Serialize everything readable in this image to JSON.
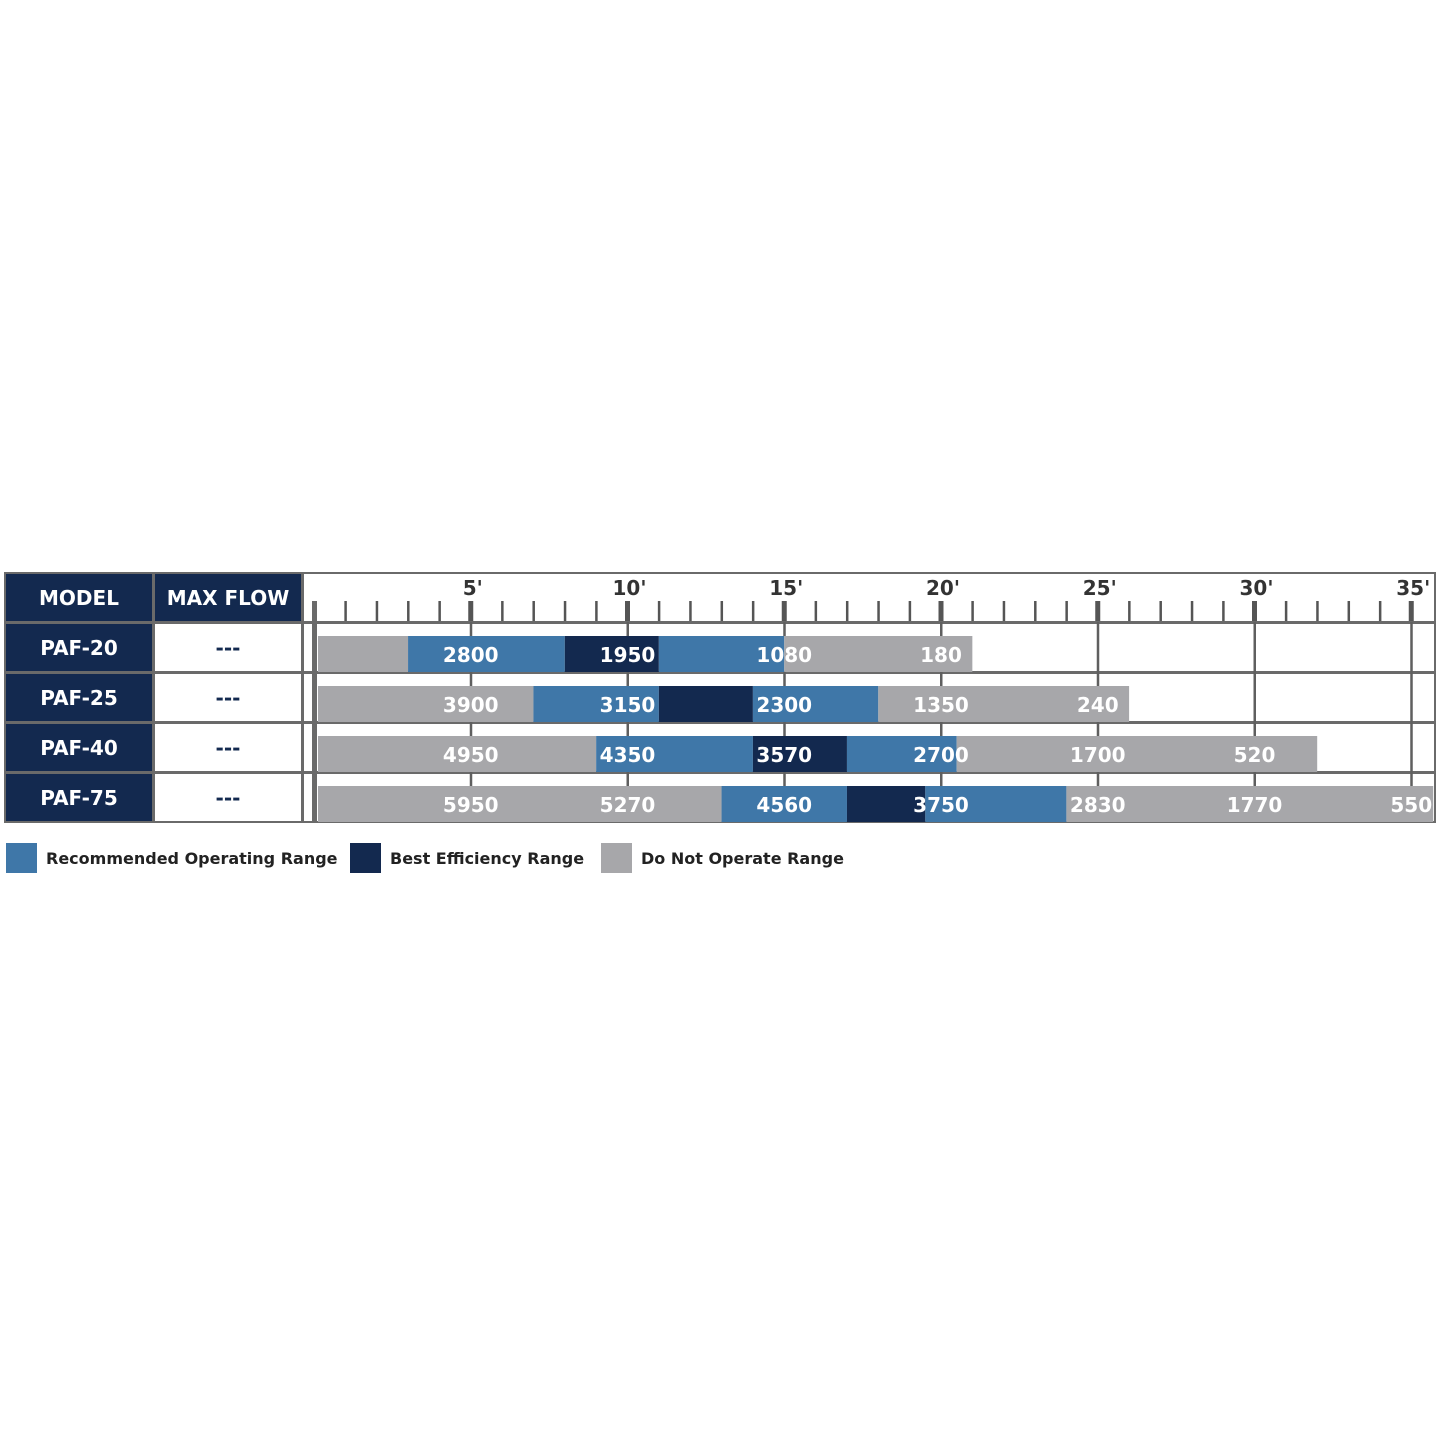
{
  "table": {
    "headers": {
      "model": "MODEL",
      "max_flow": "MAX FLOW"
    },
    "rows": [
      {
        "model": "PAF-20",
        "max_flow": "---"
      },
      {
        "model": "PAF-25",
        "max_flow": "---"
      },
      {
        "model": "PAF-40",
        "max_flow": "---"
      },
      {
        "model": "PAF-75",
        "max_flow": "---"
      }
    ]
  },
  "colors": {
    "recommended": "#3f77a8",
    "best": "#13294f",
    "do_not": "#a7a7aa",
    "grid": "#5f5f5f"
  },
  "chart_data": {
    "type": "bar",
    "orientation": "horizontal-stacked-ranges",
    "xlim": [
      0,
      35.7
    ],
    "x_ticks": [
      5,
      10,
      15,
      20,
      25,
      30,
      35
    ],
    "x_tick_labels": [
      "5'",
      "10'",
      "15'",
      "20'",
      "25'",
      "30'",
      "35'"
    ],
    "minor_tick_step": 1,
    "grid": true,
    "legend": {
      "placement": "bottom-left",
      "items": [
        {
          "key": "recommended",
          "label": "Recommended Operating Range"
        },
        {
          "key": "best",
          "label": "Best Efficiency Range"
        },
        {
          "key": "do_not",
          "label": "Do Not Operate Range"
        }
      ]
    },
    "series": [
      {
        "model": "PAF-20",
        "segments": [
          {
            "from": 0,
            "to": 3,
            "range": "do_not"
          },
          {
            "from": 3,
            "to": 8,
            "range": "recommended"
          },
          {
            "from": 8,
            "to": 11,
            "range": "best"
          },
          {
            "from": 11,
            "to": 15,
            "range": "recommended"
          },
          {
            "from": 15,
            "to": 21,
            "range": "do_not"
          }
        ],
        "labels": [
          {
            "x": 5,
            "value": "2800"
          },
          {
            "x": 10,
            "value": "1950"
          },
          {
            "x": 15,
            "value": "1080"
          },
          {
            "x": 20,
            "value": "180"
          }
        ]
      },
      {
        "model": "PAF-25",
        "segments": [
          {
            "from": 0,
            "to": 7,
            "range": "do_not"
          },
          {
            "from": 7,
            "to": 11,
            "range": "recommended"
          },
          {
            "from": 11,
            "to": 14,
            "range": "best"
          },
          {
            "from": 14,
            "to": 18,
            "range": "recommended"
          },
          {
            "from": 18,
            "to": 26,
            "range": "do_not"
          }
        ],
        "labels": [
          {
            "x": 5,
            "value": "3900"
          },
          {
            "x": 10,
            "value": "3150"
          },
          {
            "x": 15,
            "value": "2300"
          },
          {
            "x": 20,
            "value": "1350"
          },
          {
            "x": 25,
            "value": "240"
          }
        ]
      },
      {
        "model": "PAF-40",
        "segments": [
          {
            "from": 0,
            "to": 9,
            "range": "do_not"
          },
          {
            "from": 9,
            "to": 14,
            "range": "recommended"
          },
          {
            "from": 14,
            "to": 17,
            "range": "best"
          },
          {
            "from": 17,
            "to": 20.5,
            "range": "recommended"
          },
          {
            "from": 20.5,
            "to": 32,
            "range": "do_not"
          }
        ],
        "labels": [
          {
            "x": 5,
            "value": "4950"
          },
          {
            "x": 10,
            "value": "4350"
          },
          {
            "x": 15,
            "value": "3570"
          },
          {
            "x": 20,
            "value": "2700"
          },
          {
            "x": 25,
            "value": "1700"
          },
          {
            "x": 30,
            "value": "520"
          }
        ]
      },
      {
        "model": "PAF-75",
        "segments": [
          {
            "from": 0,
            "to": 13,
            "range": "do_not"
          },
          {
            "from": 13,
            "to": 17,
            "range": "recommended"
          },
          {
            "from": 17,
            "to": 19.5,
            "range": "best"
          },
          {
            "from": 19.5,
            "to": 24,
            "range": "recommended"
          },
          {
            "from": 24,
            "to": 35.7,
            "range": "do_not"
          }
        ],
        "labels": [
          {
            "x": 5,
            "value": "5950"
          },
          {
            "x": 10,
            "value": "5270"
          },
          {
            "x": 15,
            "value": "4560"
          },
          {
            "x": 20,
            "value": "3750"
          },
          {
            "x": 25,
            "value": "2830"
          },
          {
            "x": 30,
            "value": "1770"
          },
          {
            "x": 35,
            "value": "550"
          }
        ]
      }
    ]
  }
}
